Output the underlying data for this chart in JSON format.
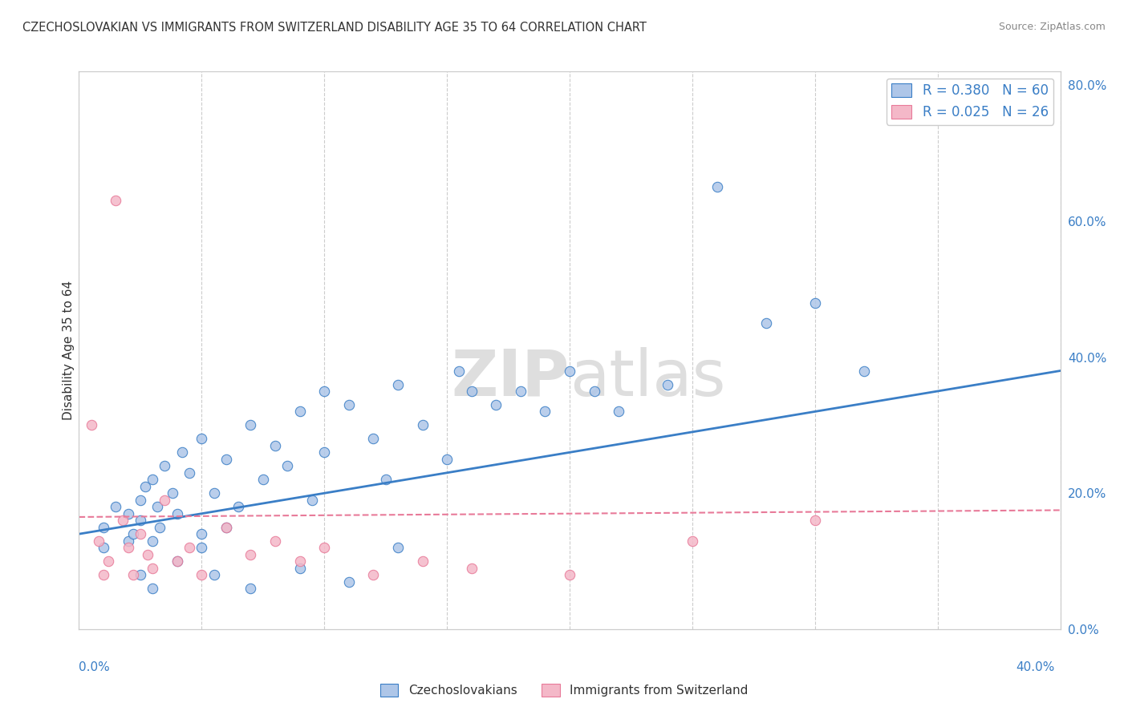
{
  "title": "CZECHOSLOVAKIAN VS IMMIGRANTS FROM SWITZERLAND DISABILITY AGE 35 TO 64 CORRELATION CHART",
  "source": "Source: ZipAtlas.com",
  "ylabel": "Disability Age 35 to 64",
  "ylabel_right_ticks": [
    "0.0%",
    "20.0%",
    "40.0%",
    "60.0%",
    "80.0%"
  ],
  "ylabel_right_vals": [
    0.0,
    0.2,
    0.4,
    0.6,
    0.8
  ],
  "xlim": [
    0.0,
    0.4
  ],
  "ylim": [
    0.0,
    0.82
  ],
  "legend_blue_label": "R = 0.380   N = 60",
  "legend_pink_label": "R = 0.025   N = 26",
  "legend_blue_color": "#aec6e8",
  "legend_pink_color": "#f4b8c8",
  "scatter_blue_color": "#aec6e8",
  "scatter_pink_color": "#f4b8c8",
  "line_blue_color": "#3a7ec6",
  "line_pink_color": "#e87a99",
  "watermark_zip": "ZIP",
  "watermark_atlas": "atlas",
  "blue_scatter_x": [
    0.01,
    0.01,
    0.015,
    0.02,
    0.02,
    0.022,
    0.025,
    0.025,
    0.027,
    0.03,
    0.03,
    0.032,
    0.033,
    0.035,
    0.038,
    0.04,
    0.042,
    0.045,
    0.05,
    0.05,
    0.055,
    0.06,
    0.065,
    0.07,
    0.075,
    0.08,
    0.085,
    0.09,
    0.095,
    0.1,
    0.1,
    0.11,
    0.12,
    0.125,
    0.13,
    0.14,
    0.15,
    0.155,
    0.16,
    0.17,
    0.18,
    0.19,
    0.2,
    0.21,
    0.22,
    0.24,
    0.26,
    0.28,
    0.3,
    0.32,
    0.025,
    0.03,
    0.04,
    0.05,
    0.055,
    0.06,
    0.07,
    0.09,
    0.11,
    0.13
  ],
  "blue_scatter_y": [
    0.12,
    0.15,
    0.18,
    0.13,
    0.17,
    0.14,
    0.16,
    0.19,
    0.21,
    0.13,
    0.22,
    0.18,
    0.15,
    0.24,
    0.2,
    0.17,
    0.26,
    0.23,
    0.28,
    0.14,
    0.2,
    0.25,
    0.18,
    0.3,
    0.22,
    0.27,
    0.24,
    0.32,
    0.19,
    0.26,
    0.35,
    0.33,
    0.28,
    0.22,
    0.36,
    0.3,
    0.25,
    0.38,
    0.35,
    0.33,
    0.35,
    0.32,
    0.38,
    0.35,
    0.32,
    0.36,
    0.65,
    0.45,
    0.48,
    0.38,
    0.08,
    0.06,
    0.1,
    0.12,
    0.08,
    0.15,
    0.06,
    0.09,
    0.07,
    0.12
  ],
  "pink_scatter_x": [
    0.005,
    0.008,
    0.01,
    0.012,
    0.015,
    0.018,
    0.02,
    0.022,
    0.025,
    0.028,
    0.03,
    0.035,
    0.04,
    0.045,
    0.05,
    0.06,
    0.07,
    0.08,
    0.09,
    0.1,
    0.12,
    0.14,
    0.16,
    0.2,
    0.25,
    0.3
  ],
  "pink_scatter_y": [
    0.3,
    0.13,
    0.08,
    0.1,
    0.63,
    0.16,
    0.12,
    0.08,
    0.14,
    0.11,
    0.09,
    0.19,
    0.1,
    0.12,
    0.08,
    0.15,
    0.11,
    0.13,
    0.1,
    0.12,
    0.08,
    0.1,
    0.09,
    0.08,
    0.13,
    0.16
  ],
  "blue_trend_x": [
    0.0,
    0.4
  ],
  "blue_trend_y": [
    0.14,
    0.38
  ],
  "pink_trend_x": [
    0.0,
    0.4
  ],
  "pink_trend_y": [
    0.165,
    0.175
  ],
  "grid_color": "#cccccc",
  "background_color": "#ffffff",
  "bottom_legend_blue": "Czechoslovakians",
  "bottom_legend_pink": "Immigrants from Switzerland"
}
